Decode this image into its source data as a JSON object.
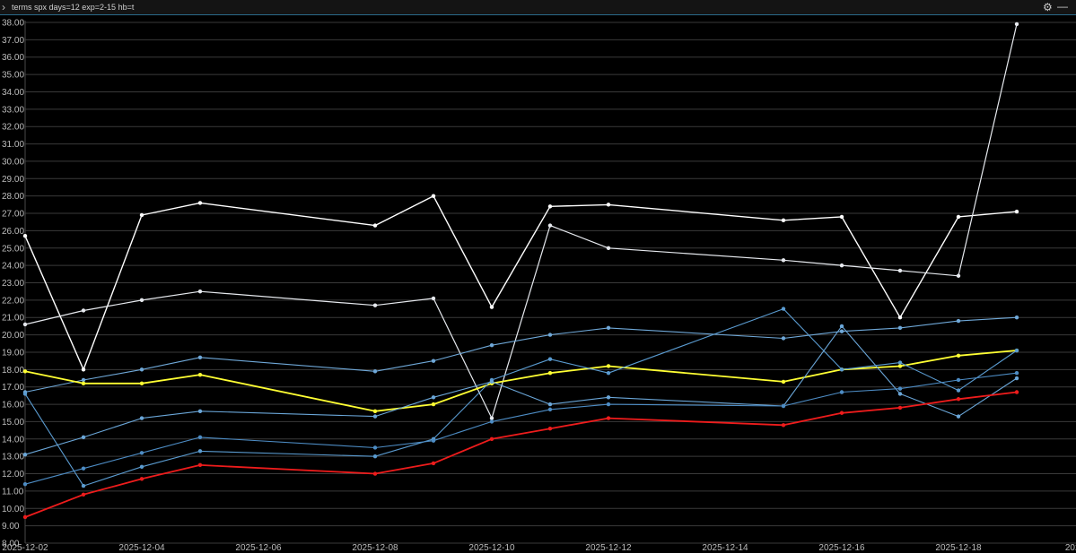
{
  "window": {
    "title": "terms spx days=12 exp=2-15 hb=t",
    "chevron_glyph": "›",
    "gear_glyph": "⚙",
    "minimize_glyph": "—"
  },
  "chart_data": {
    "type": "line",
    "title": "",
    "xlabel": "",
    "ylabel": "",
    "ylim": [
      8,
      38.5
    ],
    "y_ticks": [
      "8.00",
      "9.00",
      "10.00",
      "11.00",
      "12.00",
      "13.00",
      "14.00",
      "15.00",
      "16.00",
      "17.00",
      "18.00",
      "19.00",
      "20.00",
      "21.00",
      "22.00",
      "23.00",
      "24.00",
      "25.00",
      "26.00",
      "27.00",
      "28.00",
      "29.00",
      "30.00",
      "31.00",
      "32.00",
      "33.00",
      "34.00",
      "35.00",
      "36.00",
      "37.00",
      "38.00"
    ],
    "x_ticks": [
      "2025-12-02",
      "2025-12-04",
      "2025-12-06",
      "2025-12-08",
      "2025-12-10",
      "2025-12-12",
      "2025-12-14",
      "2025-12-16",
      "2025-12-18",
      "2025"
    ],
    "x": [
      "2025-12-02",
      "2025-12-03",
      "2025-12-04",
      "2025-12-05",
      "2025-12-08",
      "2025-12-09",
      "2025-12-10",
      "2025-12-11",
      "2025-12-12",
      "2025-12-15",
      "2025-12-16",
      "2025-12-17",
      "2025-12-18",
      "2025-12-19"
    ],
    "grid": true,
    "legend": "none",
    "series": [
      {
        "color": "#ffffff",
        "width": 1.4,
        "values": [
          25.7,
          18.0,
          26.9,
          27.6,
          26.3,
          28.0,
          21.6,
          27.4,
          27.5,
          26.6,
          26.8,
          21.0,
          26.8,
          27.1
        ]
      },
      {
        "color": "#e6e9ee",
        "width": 1.2,
        "values": [
          20.6,
          21.4,
          22.0,
          22.5,
          21.7,
          22.1,
          15.2,
          26.3,
          25.0,
          24.3,
          24.0,
          23.7,
          23.4,
          37.9
        ]
      },
      {
        "color": "#6fa8d8",
        "width": 1.1,
        "values": [
          16.7,
          17.4,
          18.0,
          18.7,
          17.9,
          18.5,
          19.4,
          20.0,
          20.4,
          19.8,
          20.2,
          20.4,
          20.8,
          21.0
        ]
      },
      {
        "color": "#ffff33",
        "width": 1.8,
        "values": [
          17.9,
          17.2,
          17.2,
          17.7,
          15.6,
          16.0,
          17.2,
          17.8,
          18.2,
          17.3,
          18.0,
          18.2,
          18.8,
          19.1
        ]
      },
      {
        "color": "#5a9bd0",
        "width": 1.1,
        "values": [
          16.6,
          11.3,
          12.4,
          13.3,
          13.0,
          14.0,
          17.4,
          18.6,
          17.8,
          21.5,
          18.0,
          18.4,
          16.8,
          19.1
        ]
      },
      {
        "color": "#6aa6d8",
        "width": 1.1,
        "values": [
          13.1,
          14.1,
          15.2,
          15.6,
          15.3,
          16.4,
          17.3,
          16.0,
          16.4,
          15.9,
          20.5,
          16.6,
          15.3,
          17.5
        ]
      },
      {
        "color": "#4d8cc4",
        "width": 1.1,
        "values": [
          11.4,
          12.3,
          13.2,
          14.1,
          13.5,
          13.9,
          15.0,
          15.7,
          16.0,
          15.9,
          16.7,
          16.9,
          17.4,
          17.8
        ]
      },
      {
        "color": "#ee1c1c",
        "width": 1.8,
        "values": [
          9.5,
          10.8,
          11.7,
          12.5,
          12.0,
          12.6,
          14.0,
          14.6,
          15.2,
          14.8,
          15.5,
          15.8,
          16.3,
          16.7
        ]
      }
    ]
  }
}
